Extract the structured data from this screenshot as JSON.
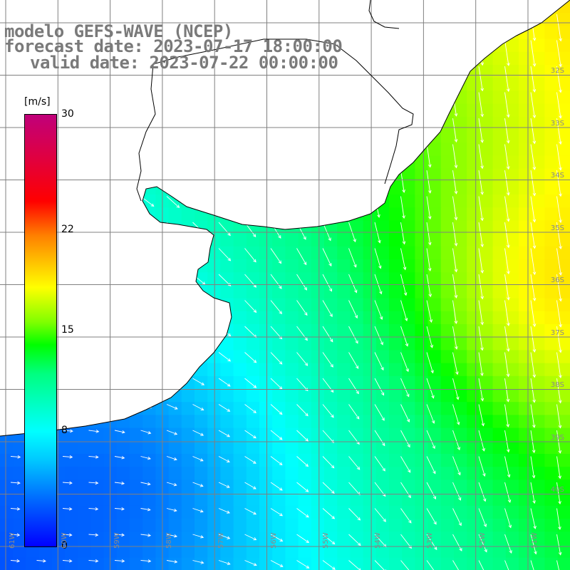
{
  "title": {
    "line1": "modelo GEFS-WAVE (NCEP)",
    "line2": "forecast date: 2023-07-17 18:00:00",
    "line3": "valid date: 2023-07-22 00:00:00"
  },
  "colorbar": {
    "unit": "[m/s]",
    "ticks": [
      {
        "label": "30",
        "value": 30
      },
      {
        "label": "22",
        "value": 22
      },
      {
        "label": "15",
        "value": 15
      },
      {
        "label": "8",
        "value": 8
      },
      {
        "label": "0",
        "value": 0
      }
    ],
    "min": 0,
    "max": 30
  },
  "latitude_labels": [
    "32S",
    "33S",
    "34S",
    "35S",
    "36S",
    "37S",
    "38S",
    "39S",
    "40S"
  ],
  "longitude_labels": [
    "61W",
    "60W",
    "59W",
    "58W",
    "57W",
    "56W",
    "55W",
    "54W",
    "53W",
    "52W",
    "51W"
  ],
  "colors": {
    "land": "#ffffff",
    "grid": "#808080",
    "coast": "#000000",
    "arrows": "#ffffff",
    "labels": "#7a7a7a"
  }
}
